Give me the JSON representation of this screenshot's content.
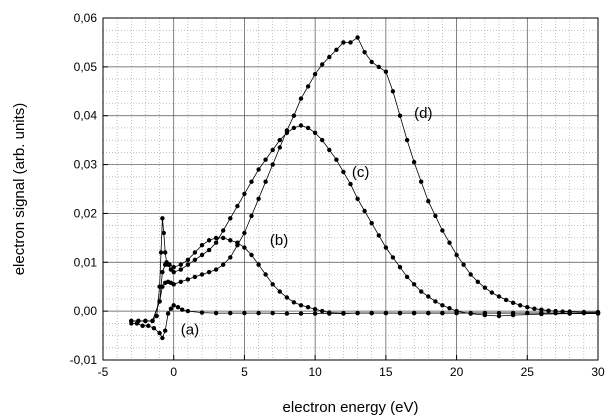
{
  "chart_data": {
    "type": "scatter",
    "title": "",
    "xlabel": "electron energy (eV)",
    "ylabel": "electron signal (arb. units)",
    "xlim": [
      -5,
      30
    ],
    "ylim": [
      -0.01,
      0.06
    ],
    "xticks": [
      -5,
      0,
      5,
      10,
      15,
      20,
      25,
      30
    ],
    "yticks": [
      -0.01,
      0.0,
      0.01,
      0.02,
      0.03,
      0.04,
      0.05,
      0.06
    ],
    "xtick_labels": [
      "-5",
      "0",
      "5",
      "10",
      "15",
      "20",
      "25",
      "30"
    ],
    "ytick_labels": [
      "-0,01",
      "0,00",
      "0,01",
      "0,02",
      "0,03",
      "0,04",
      "0,05",
      "0,06"
    ],
    "grid": true,
    "color": "#000000",
    "series": [
      {
        "name": "(a)",
        "label_pos": {
          "x": 0.5,
          "y": -0.0048
        },
        "x": [
          -3.0,
          -2.6,
          -2.2,
          -1.8,
          -1.4,
          -1.0,
          -0.8,
          -0.6,
          -0.4,
          -0.2,
          0.0,
          0.3,
          0.6,
          1.0,
          2.0,
          3.0,
          4.0,
          5.0,
          6.0,
          7.0,
          8.0,
          9.0,
          10.0,
          11.0,
          12.0,
          13.0,
          14.0,
          15.0,
          16.0,
          17.0,
          18.0,
          19.0,
          20.0,
          21.0,
          22.0,
          23.0,
          24.0,
          25.0,
          26.0,
          27.0,
          28.0,
          29.0,
          30.0
        ],
        "y": [
          -0.0025,
          -0.0025,
          -0.003,
          -0.003,
          -0.0035,
          -0.0045,
          -0.0055,
          -0.004,
          -0.0005,
          0.0005,
          0.0012,
          0.0008,
          0.0003,
          0.0,
          -0.0003,
          -0.0004,
          -0.0004,
          -0.0004,
          -0.0004,
          -0.0004,
          -0.0005,
          -0.0005,
          -0.0005,
          -0.0005,
          -0.0005,
          -0.0004,
          -0.0004,
          -0.0004,
          -0.0004,
          -0.0004,
          -0.0004,
          -0.0004,
          -0.0004,
          -0.0004,
          -0.0004,
          -0.0004,
          -0.0004,
          -0.0004,
          -0.0004,
          -0.0004,
          -0.0004,
          -0.0004,
          -0.0004
        ]
      },
      {
        "name": "(b)",
        "label_pos": {
          "x": 6.8,
          "y": 0.0135
        },
        "x": [
          -3.0,
          -2.5,
          -2.0,
          -1.5,
          -1.2,
          -1.0,
          -0.9,
          -0.8,
          -0.7,
          -0.6,
          -0.5,
          -0.3,
          0.0,
          0.5,
          1.0,
          1.5,
          2.0,
          2.5,
          3.0,
          3.5,
          4.0,
          4.5,
          5.0,
          5.5,
          6.0,
          6.5,
          7.0,
          7.5,
          8.0,
          8.5,
          9.0,
          9.5,
          10.0,
          10.5,
          11.0,
          12.0,
          13.0,
          14.0,
          15.0,
          16.0,
          17.0,
          18.0,
          19.0,
          20.0,
          22.0,
          24.0,
          26.0,
          28.0,
          30.0
        ],
        "y": [
          -0.002,
          -0.002,
          -0.002,
          -0.002,
          -0.001,
          0.005,
          0.012,
          0.019,
          0.016,
          0.012,
          0.01,
          0.0095,
          0.009,
          0.0095,
          0.0105,
          0.012,
          0.0135,
          0.0145,
          0.015,
          0.015,
          0.0145,
          0.014,
          0.013,
          0.0115,
          0.0095,
          0.0075,
          0.0055,
          0.004,
          0.0028,
          0.0018,
          0.0012,
          0.0008,
          0.0004,
          0.0,
          -0.0003,
          -0.0004,
          -0.0004,
          -0.0004,
          -0.0004,
          -0.0004,
          -0.0004,
          -0.0004,
          -0.0004,
          -0.0004,
          -0.0004,
          -0.0004,
          -0.0004,
          -0.0004,
          -0.0004
        ]
      },
      {
        "name": "(c)",
        "label_pos": {
          "x": 12.6,
          "y": 0.0275
        },
        "x": [
          -3.0,
          -2.5,
          -2.0,
          -1.5,
          -1.0,
          -0.8,
          -0.6,
          -0.4,
          -0.2,
          0.0,
          0.5,
          1.0,
          1.5,
          2.0,
          2.5,
          3.0,
          3.5,
          4.0,
          4.5,
          5.0,
          5.5,
          6.0,
          6.5,
          7.0,
          7.5,
          8.0,
          8.5,
          9.0,
          9.5,
          10.0,
          10.5,
          11.0,
          11.5,
          12.0,
          12.5,
          13.0,
          13.5,
          14.0,
          14.5,
          15.0,
          15.5,
          16.0,
          16.5,
          17.0,
          17.5,
          18.0,
          18.5,
          19.0,
          19.5,
          20.0,
          21.0,
          22.0,
          23.0,
          24.0,
          26.0,
          28.0,
          30.0
        ],
        "y": [
          -0.002,
          -0.002,
          -0.002,
          -0.002,
          0.002,
          0.008,
          0.0095,
          0.0095,
          0.0085,
          0.008,
          0.0085,
          0.0095,
          0.0105,
          0.0115,
          0.0125,
          0.014,
          0.0165,
          0.019,
          0.0215,
          0.024,
          0.0265,
          0.029,
          0.031,
          0.033,
          0.035,
          0.0365,
          0.0375,
          0.038,
          0.0375,
          0.0365,
          0.035,
          0.033,
          0.031,
          0.0285,
          0.026,
          0.023,
          0.0205,
          0.018,
          0.0155,
          0.013,
          0.011,
          0.009,
          0.007,
          0.0055,
          0.004,
          0.003,
          0.002,
          0.0012,
          0.0006,
          0.0,
          -0.0005,
          -0.0008,
          -0.001,
          -0.0008,
          -0.0006,
          -0.0005,
          -0.0005
        ]
      },
      {
        "name": "(d)",
        "label_pos": {
          "x": 17.0,
          "y": 0.0395
        },
        "x": [
          -3.0,
          -2.5,
          -2.0,
          -1.5,
          -1.0,
          -0.8,
          -0.6,
          -0.4,
          -0.2,
          0.0,
          0.5,
          1.0,
          1.5,
          2.0,
          2.5,
          3.0,
          3.5,
          4.0,
          4.5,
          5.0,
          5.5,
          6.0,
          6.5,
          7.0,
          7.5,
          8.0,
          8.5,
          9.0,
          9.5,
          10.0,
          10.5,
          11.0,
          11.5,
          12.0,
          12.5,
          13.0,
          13.5,
          14.0,
          14.5,
          15.0,
          15.5,
          16.0,
          16.5,
          17.0,
          17.5,
          18.0,
          18.5,
          19.0,
          19.5,
          20.0,
          20.5,
          21.0,
          21.5,
          22.0,
          22.5,
          23.0,
          23.5,
          24.0,
          24.5,
          25.0,
          25.5,
          26.0,
          26.5,
          27.0,
          27.5,
          28.0,
          29.0,
          30.0
        ],
        "y": [
          -0.002,
          -0.002,
          -0.002,
          -0.002,
          0.002,
          0.005,
          0.0058,
          0.006,
          0.0058,
          0.0055,
          0.006,
          0.0065,
          0.007,
          0.0075,
          0.008,
          0.0085,
          0.0095,
          0.011,
          0.0135,
          0.016,
          0.0195,
          0.023,
          0.0265,
          0.03,
          0.0335,
          0.037,
          0.04,
          0.0435,
          0.046,
          0.0485,
          0.0505,
          0.052,
          0.0535,
          0.055,
          0.055,
          0.056,
          0.053,
          0.051,
          0.05,
          0.049,
          0.045,
          0.04,
          0.035,
          0.0305,
          0.0265,
          0.0225,
          0.0195,
          0.0165,
          0.014,
          0.0115,
          0.0095,
          0.0075,
          0.006,
          0.0048,
          0.0038,
          0.003,
          0.0023,
          0.0017,
          0.0012,
          0.0008,
          0.0005,
          0.0003,
          0.0001,
          0.0,
          -0.0001,
          -0.0001,
          -0.0002,
          -0.0002
        ]
      }
    ]
  }
}
